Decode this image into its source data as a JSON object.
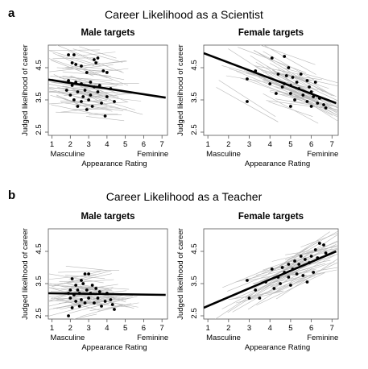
{
  "figure": {
    "panel_a_letter": "a",
    "panel_a_title": "Career Likelihood as a Scientist",
    "panel_b_letter": "b",
    "panel_b_title": "Career Likelihood as a Teacher"
  },
  "chart_data": [
    {
      "type": "scatter",
      "panel": "a",
      "title": "Male targets",
      "xlabel": "Appearance Rating",
      "ylabel": "Judged likelihood of career",
      "xlim": [
        0.8,
        7.3
      ],
      "ylim": [
        2.4,
        5.2
      ],
      "xticks": [
        1,
        2,
        3,
        4,
        5,
        6,
        7
      ],
      "yticks": [
        2.5,
        3.5,
        4.5
      ],
      "x_end_labels": {
        "low": "Masculine",
        "high": "Feminine"
      },
      "fit_line": {
        "x": [
          0.8,
          7.2
        ],
        "y": [
          4.13,
          3.57
        ]
      },
      "points": [
        [
          1.9,
          4.9
        ],
        [
          2.2,
          4.9
        ],
        [
          2.1,
          4.65
        ],
        [
          2.3,
          4.6
        ],
        [
          2.6,
          4.55
        ],
        [
          3.3,
          4.75
        ],
        [
          3.4,
          4.65
        ],
        [
          3.5,
          4.8
        ],
        [
          2.9,
          4.35
        ],
        [
          3.8,
          4.4
        ],
        [
          4.0,
          4.35
        ],
        [
          1.9,
          4.1
        ],
        [
          2.3,
          4.05
        ],
        [
          2.6,
          4.0
        ],
        [
          3.1,
          4.05
        ],
        [
          2.1,
          3.95
        ],
        [
          3.3,
          3.9
        ],
        [
          3.6,
          3.95
        ],
        [
          4.2,
          3.85
        ],
        [
          1.8,
          3.8
        ],
        [
          2.4,
          3.75
        ],
        [
          2.8,
          3.8
        ],
        [
          3.5,
          3.75
        ],
        [
          2.0,
          3.65
        ],
        [
          2.7,
          3.6
        ],
        [
          3.1,
          3.65
        ],
        [
          4.0,
          3.6
        ],
        [
          2.2,
          3.5
        ],
        [
          2.6,
          3.45
        ],
        [
          3.0,
          3.5
        ],
        [
          3.7,
          3.4
        ],
        [
          4.4,
          3.45
        ],
        [
          2.4,
          3.3
        ],
        [
          3.2,
          3.3
        ],
        [
          2.9,
          3.2
        ],
        [
          3.9,
          3.0
        ]
      ]
    },
    {
      "type": "scatter",
      "panel": "a",
      "title": "Female targets",
      "xlabel": "Appearance Rating",
      "ylabel": "Judged likelihood of career",
      "xlim": [
        0.8,
        7.3
      ],
      "ylim": [
        2.4,
        5.2
      ],
      "xticks": [
        1,
        2,
        3,
        4,
        5,
        6,
        7
      ],
      "yticks": [
        2.5,
        3.5,
        4.5
      ],
      "x_end_labels": {
        "low": "Masculine",
        "high": "Feminine"
      },
      "fit_line": {
        "x": [
          0.8,
          7.2
        ],
        "y": [
          4.95,
          3.4
        ]
      },
      "points": [
        [
          2.9,
          4.15
        ],
        [
          3.3,
          4.4
        ],
        [
          4.1,
          4.8
        ],
        [
          4.7,
          4.85
        ],
        [
          4.9,
          4.5
        ],
        [
          4.4,
          4.3
        ],
        [
          4.8,
          4.25
        ],
        [
          5.1,
          4.2
        ],
        [
          5.5,
          4.3
        ],
        [
          4.0,
          4.0
        ],
        [
          4.7,
          4.0
        ],
        [
          5.0,
          3.95
        ],
        [
          5.3,
          4.05
        ],
        [
          5.8,
          4.1
        ],
        [
          6.2,
          4.05
        ],
        [
          4.6,
          3.9
        ],
        [
          5.4,
          3.85
        ],
        [
          5.9,
          3.9
        ],
        [
          6.0,
          3.75
        ],
        [
          4.3,
          3.7
        ],
        [
          5.0,
          3.7
        ],
        [
          5.6,
          3.65
        ],
        [
          6.1,
          3.6
        ],
        [
          6.4,
          3.55
        ],
        [
          5.2,
          3.5
        ],
        [
          5.8,
          3.45
        ],
        [
          6.3,
          3.4
        ],
        [
          6.6,
          3.35
        ],
        [
          5.0,
          3.3
        ],
        [
          6.0,
          3.3
        ],
        [
          6.7,
          3.25
        ],
        [
          2.9,
          3.45
        ]
      ]
    },
    {
      "type": "scatter",
      "panel": "b",
      "title": "Male targets",
      "xlabel": "Appearance Rating",
      "ylabel": "Judged likelihood of career",
      "xlim": [
        0.8,
        7.3
      ],
      "ylim": [
        2.4,
        5.2
      ],
      "xticks": [
        1,
        2,
        3,
        4,
        5,
        6,
        7
      ],
      "yticks": [
        2.5,
        3.5,
        4.5
      ],
      "x_end_labels": {
        "low": "Masculine",
        "high": "Feminine"
      },
      "fit_line": {
        "x": [
          0.8,
          7.2
        ],
        "y": [
          3.2,
          3.15
        ]
      },
      "points": [
        [
          2.8,
          3.8
        ],
        [
          3.0,
          3.8
        ],
        [
          2.1,
          3.65
        ],
        [
          2.6,
          3.6
        ],
        [
          2.3,
          3.45
        ],
        [
          2.7,
          3.5
        ],
        [
          3.2,
          3.45
        ],
        [
          2.0,
          3.3
        ],
        [
          2.4,
          3.3
        ],
        [
          2.9,
          3.3
        ],
        [
          3.4,
          3.35
        ],
        [
          1.9,
          3.2
        ],
        [
          2.2,
          3.15
        ],
        [
          2.5,
          3.2
        ],
        [
          3.1,
          3.2
        ],
        [
          3.6,
          3.25
        ],
        [
          4.0,
          3.2
        ],
        [
          2.0,
          3.05
        ],
        [
          2.6,
          3.0
        ],
        [
          3.0,
          3.05
        ],
        [
          3.5,
          3.05
        ],
        [
          4.2,
          3.0
        ],
        [
          2.3,
          2.95
        ],
        [
          2.8,
          2.9
        ],
        [
          3.3,
          2.9
        ],
        [
          3.9,
          2.95
        ],
        [
          4.3,
          2.85
        ],
        [
          2.1,
          2.75
        ],
        [
          2.5,
          2.8
        ],
        [
          3.7,
          2.8
        ],
        [
          4.4,
          2.7
        ],
        [
          1.9,
          2.5
        ]
      ]
    },
    {
      "type": "scatter",
      "panel": "b",
      "title": "Female targets",
      "xlabel": "Appearance Rating",
      "ylabel": "Judged likelihood of career",
      "xlim": [
        0.8,
        7.3
      ],
      "ylim": [
        2.4,
        5.2
      ],
      "xticks": [
        1,
        2,
        3,
        4,
        5,
        6,
        7
      ],
      "yticks": [
        2.5,
        3.5,
        4.5
      ],
      "x_end_labels": {
        "low": "Masculine",
        "high": "Feminine"
      },
      "fit_line": {
        "x": [
          0.8,
          7.2
        ],
        "y": [
          2.75,
          4.5
        ]
      },
      "points": [
        [
          6.4,
          4.75
        ],
        [
          6.6,
          4.7
        ],
        [
          6.2,
          4.55
        ],
        [
          6.7,
          4.45
        ],
        [
          5.5,
          4.35
        ],
        [
          6.0,
          4.35
        ],
        [
          5.2,
          4.2
        ],
        [
          5.7,
          4.25
        ],
        [
          6.3,
          4.3
        ],
        [
          4.9,
          4.1
        ],
        [
          5.4,
          4.1
        ],
        [
          5.9,
          4.15
        ],
        [
          4.1,
          3.95
        ],
        [
          4.6,
          4.0
        ],
        [
          5.1,
          3.95
        ],
        [
          4.7,
          3.85
        ],
        [
          5.3,
          3.8
        ],
        [
          6.1,
          3.85
        ],
        [
          4.4,
          3.7
        ],
        [
          4.9,
          3.7
        ],
        [
          5.6,
          3.75
        ],
        [
          3.8,
          3.55
        ],
        [
          4.5,
          3.5
        ],
        [
          5.0,
          3.45
        ],
        [
          5.8,
          3.55
        ],
        [
          2.9,
          3.6
        ],
        [
          3.3,
          3.3
        ],
        [
          4.2,
          3.35
        ],
        [
          3.0,
          3.05
        ],
        [
          3.5,
          3.05
        ]
      ]
    }
  ]
}
